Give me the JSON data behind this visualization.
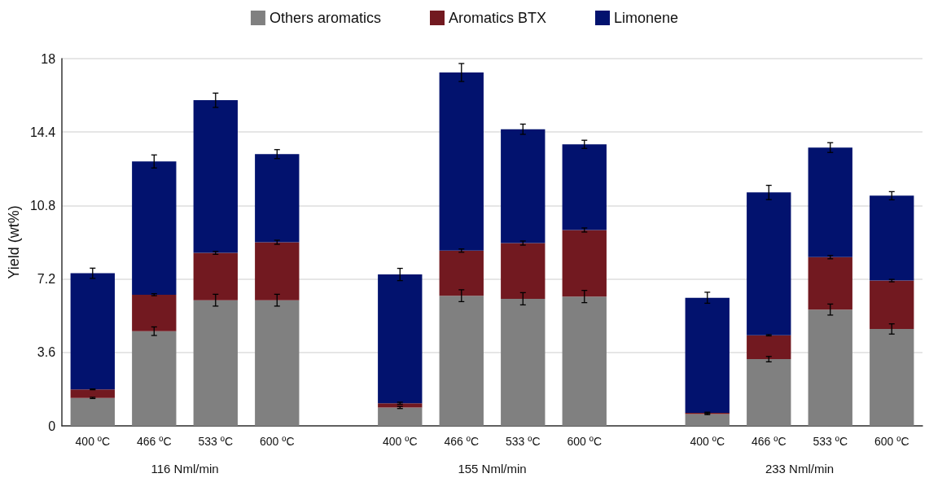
{
  "chart_data": {
    "type": "bar",
    "stacked": true,
    "ylabel": "Yield (wt%)",
    "categories": [
      "400 ºC",
      "466 ºC",
      "533 ºC",
      "600 ºC",
      null,
      "400 ºC",
      "466 ºC",
      "533 ºC",
      "600 ºC",
      null,
      "400 ºC",
      "466 ºC",
      "533 ºC",
      "600 ºC"
    ],
    "series": [
      {
        "name": "Others aromatics",
        "color": "#808080",
        "values": [
          1.37,
          4.64,
          6.16,
          6.16,
          null,
          0.9,
          6.38,
          6.23,
          6.34,
          null,
          0.58,
          3.27,
          5.7,
          4.75
        ],
        "errors": [
          0.03,
          0.21,
          0.29,
          0.29,
          null,
          0.05,
          0.29,
          0.3,
          0.3,
          null,
          0.03,
          0.13,
          0.27,
          0.25
        ]
      },
      {
        "name": "Aromatics BTX",
        "color": "#721920",
        "values": [
          0.42,
          1.79,
          2.32,
          2.84,
          null,
          0.21,
          2.21,
          2.73,
          3.26,
          null,
          0.06,
          1.17,
          2.57,
          2.37
        ],
        "errors": [
          0.02,
          0.05,
          0.07,
          0.1,
          null,
          0.05,
          0.08,
          0.1,
          0.1,
          null,
          0.03,
          0.03,
          0.08,
          0.06
        ]
      },
      {
        "name": "Limonene",
        "color": "#02126e",
        "values": [
          5.69,
          6.53,
          7.48,
          4.32,
          null,
          6.31,
          8.73,
          5.58,
          4.2,
          null,
          5.64,
          7.0,
          5.37,
          4.16
        ],
        "errors": [
          0.25,
          0.32,
          0.35,
          0.22,
          null,
          0.3,
          0.44,
          0.25,
          0.2,
          null,
          0.27,
          0.35,
          0.24,
          0.2
        ]
      }
    ],
    "ylim": [
      0,
      18
    ],
    "yticks": [
      0,
      3.6,
      7.2,
      10.8,
      14.4,
      18
    ],
    "grid": "y",
    "legend": "top",
    "annotations": [
      "116 Nml/min",
      "155 Nml/min",
      "233 Nml/min"
    ]
  }
}
